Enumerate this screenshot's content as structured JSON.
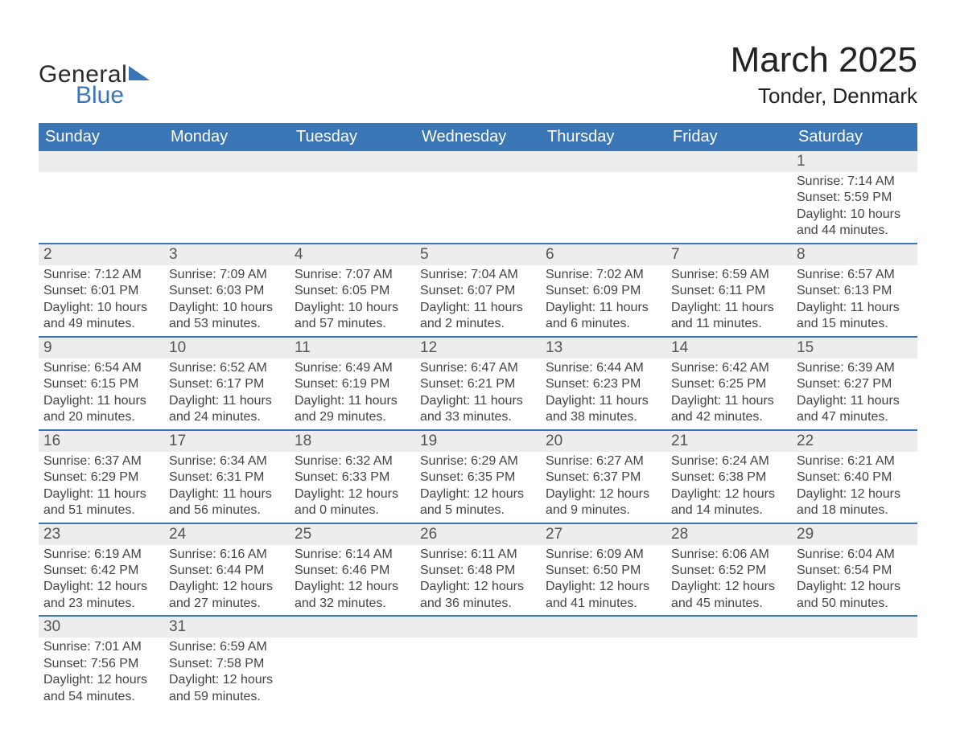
{
  "brand": {
    "line1": "General",
    "line2": "Blue"
  },
  "title": "March 2025",
  "location": "Tonder, Denmark",
  "colors": {
    "header_bg": "#3a76b6",
    "header_text": "#ffffff",
    "row_divider": "#3a76b6",
    "daynum_bg": "#ededed",
    "body_text": "#444444",
    "page_bg": "#ffffff"
  },
  "fonts": {
    "title_size_pt": 33,
    "location_size_pt": 20,
    "dow_size_pt": 15,
    "daynum_size_pt": 14,
    "detail_size_pt": 12
  },
  "days_of_week": [
    "Sunday",
    "Monday",
    "Tuesday",
    "Wednesday",
    "Thursday",
    "Friday",
    "Saturday"
  ],
  "weeks": [
    [
      {
        "n": "",
        "sunrise": "",
        "sunset": "",
        "daylight": ""
      },
      {
        "n": "",
        "sunrise": "",
        "sunset": "",
        "daylight": ""
      },
      {
        "n": "",
        "sunrise": "",
        "sunset": "",
        "daylight": ""
      },
      {
        "n": "",
        "sunrise": "",
        "sunset": "",
        "daylight": ""
      },
      {
        "n": "",
        "sunrise": "",
        "sunset": "",
        "daylight": ""
      },
      {
        "n": "",
        "sunrise": "",
        "sunset": "",
        "daylight": ""
      },
      {
        "n": "1",
        "sunrise": "Sunrise: 7:14 AM",
        "sunset": "Sunset: 5:59 PM",
        "daylight": "Daylight: 10 hours and 44 minutes."
      }
    ],
    [
      {
        "n": "2",
        "sunrise": "Sunrise: 7:12 AM",
        "sunset": "Sunset: 6:01 PM",
        "daylight": "Daylight: 10 hours and 49 minutes."
      },
      {
        "n": "3",
        "sunrise": "Sunrise: 7:09 AM",
        "sunset": "Sunset: 6:03 PM",
        "daylight": "Daylight: 10 hours and 53 minutes."
      },
      {
        "n": "4",
        "sunrise": "Sunrise: 7:07 AM",
        "sunset": "Sunset: 6:05 PM",
        "daylight": "Daylight: 10 hours and 57 minutes."
      },
      {
        "n": "5",
        "sunrise": "Sunrise: 7:04 AM",
        "sunset": "Sunset: 6:07 PM",
        "daylight": "Daylight: 11 hours and 2 minutes."
      },
      {
        "n": "6",
        "sunrise": "Sunrise: 7:02 AM",
        "sunset": "Sunset: 6:09 PM",
        "daylight": "Daylight: 11 hours and 6 minutes."
      },
      {
        "n": "7",
        "sunrise": "Sunrise: 6:59 AM",
        "sunset": "Sunset: 6:11 PM",
        "daylight": "Daylight: 11 hours and 11 minutes."
      },
      {
        "n": "8",
        "sunrise": "Sunrise: 6:57 AM",
        "sunset": "Sunset: 6:13 PM",
        "daylight": "Daylight: 11 hours and 15 minutes."
      }
    ],
    [
      {
        "n": "9",
        "sunrise": "Sunrise: 6:54 AM",
        "sunset": "Sunset: 6:15 PM",
        "daylight": "Daylight: 11 hours and 20 minutes."
      },
      {
        "n": "10",
        "sunrise": "Sunrise: 6:52 AM",
        "sunset": "Sunset: 6:17 PM",
        "daylight": "Daylight: 11 hours and 24 minutes."
      },
      {
        "n": "11",
        "sunrise": "Sunrise: 6:49 AM",
        "sunset": "Sunset: 6:19 PM",
        "daylight": "Daylight: 11 hours and 29 minutes."
      },
      {
        "n": "12",
        "sunrise": "Sunrise: 6:47 AM",
        "sunset": "Sunset: 6:21 PM",
        "daylight": "Daylight: 11 hours and 33 minutes."
      },
      {
        "n": "13",
        "sunrise": "Sunrise: 6:44 AM",
        "sunset": "Sunset: 6:23 PM",
        "daylight": "Daylight: 11 hours and 38 minutes."
      },
      {
        "n": "14",
        "sunrise": "Sunrise: 6:42 AM",
        "sunset": "Sunset: 6:25 PM",
        "daylight": "Daylight: 11 hours and 42 minutes."
      },
      {
        "n": "15",
        "sunrise": "Sunrise: 6:39 AM",
        "sunset": "Sunset: 6:27 PM",
        "daylight": "Daylight: 11 hours and 47 minutes."
      }
    ],
    [
      {
        "n": "16",
        "sunrise": "Sunrise: 6:37 AM",
        "sunset": "Sunset: 6:29 PM",
        "daylight": "Daylight: 11 hours and 51 minutes."
      },
      {
        "n": "17",
        "sunrise": "Sunrise: 6:34 AM",
        "sunset": "Sunset: 6:31 PM",
        "daylight": "Daylight: 11 hours and 56 minutes."
      },
      {
        "n": "18",
        "sunrise": "Sunrise: 6:32 AM",
        "sunset": "Sunset: 6:33 PM",
        "daylight": "Daylight: 12 hours and 0 minutes."
      },
      {
        "n": "19",
        "sunrise": "Sunrise: 6:29 AM",
        "sunset": "Sunset: 6:35 PM",
        "daylight": "Daylight: 12 hours and 5 minutes."
      },
      {
        "n": "20",
        "sunrise": "Sunrise: 6:27 AM",
        "sunset": "Sunset: 6:37 PM",
        "daylight": "Daylight: 12 hours and 9 minutes."
      },
      {
        "n": "21",
        "sunrise": "Sunrise: 6:24 AM",
        "sunset": "Sunset: 6:38 PM",
        "daylight": "Daylight: 12 hours and 14 minutes."
      },
      {
        "n": "22",
        "sunrise": "Sunrise: 6:21 AM",
        "sunset": "Sunset: 6:40 PM",
        "daylight": "Daylight: 12 hours and 18 minutes."
      }
    ],
    [
      {
        "n": "23",
        "sunrise": "Sunrise: 6:19 AM",
        "sunset": "Sunset: 6:42 PM",
        "daylight": "Daylight: 12 hours and 23 minutes."
      },
      {
        "n": "24",
        "sunrise": "Sunrise: 6:16 AM",
        "sunset": "Sunset: 6:44 PM",
        "daylight": "Daylight: 12 hours and 27 minutes."
      },
      {
        "n": "25",
        "sunrise": "Sunrise: 6:14 AM",
        "sunset": "Sunset: 6:46 PM",
        "daylight": "Daylight: 12 hours and 32 minutes."
      },
      {
        "n": "26",
        "sunrise": "Sunrise: 6:11 AM",
        "sunset": "Sunset: 6:48 PM",
        "daylight": "Daylight: 12 hours and 36 minutes."
      },
      {
        "n": "27",
        "sunrise": "Sunrise: 6:09 AM",
        "sunset": "Sunset: 6:50 PM",
        "daylight": "Daylight: 12 hours and 41 minutes."
      },
      {
        "n": "28",
        "sunrise": "Sunrise: 6:06 AM",
        "sunset": "Sunset: 6:52 PM",
        "daylight": "Daylight: 12 hours and 45 minutes."
      },
      {
        "n": "29",
        "sunrise": "Sunrise: 6:04 AM",
        "sunset": "Sunset: 6:54 PM",
        "daylight": "Daylight: 12 hours and 50 minutes."
      }
    ],
    [
      {
        "n": "30",
        "sunrise": "Sunrise: 7:01 AM",
        "sunset": "Sunset: 7:56 PM",
        "daylight": "Daylight: 12 hours and 54 minutes."
      },
      {
        "n": "31",
        "sunrise": "Sunrise: 6:59 AM",
        "sunset": "Sunset: 7:58 PM",
        "daylight": "Daylight: 12 hours and 59 minutes."
      },
      {
        "n": "",
        "sunrise": "",
        "sunset": "",
        "daylight": ""
      },
      {
        "n": "",
        "sunrise": "",
        "sunset": "",
        "daylight": ""
      },
      {
        "n": "",
        "sunrise": "",
        "sunset": "",
        "daylight": ""
      },
      {
        "n": "",
        "sunrise": "",
        "sunset": "",
        "daylight": ""
      },
      {
        "n": "",
        "sunrise": "",
        "sunset": "",
        "daylight": ""
      }
    ]
  ]
}
